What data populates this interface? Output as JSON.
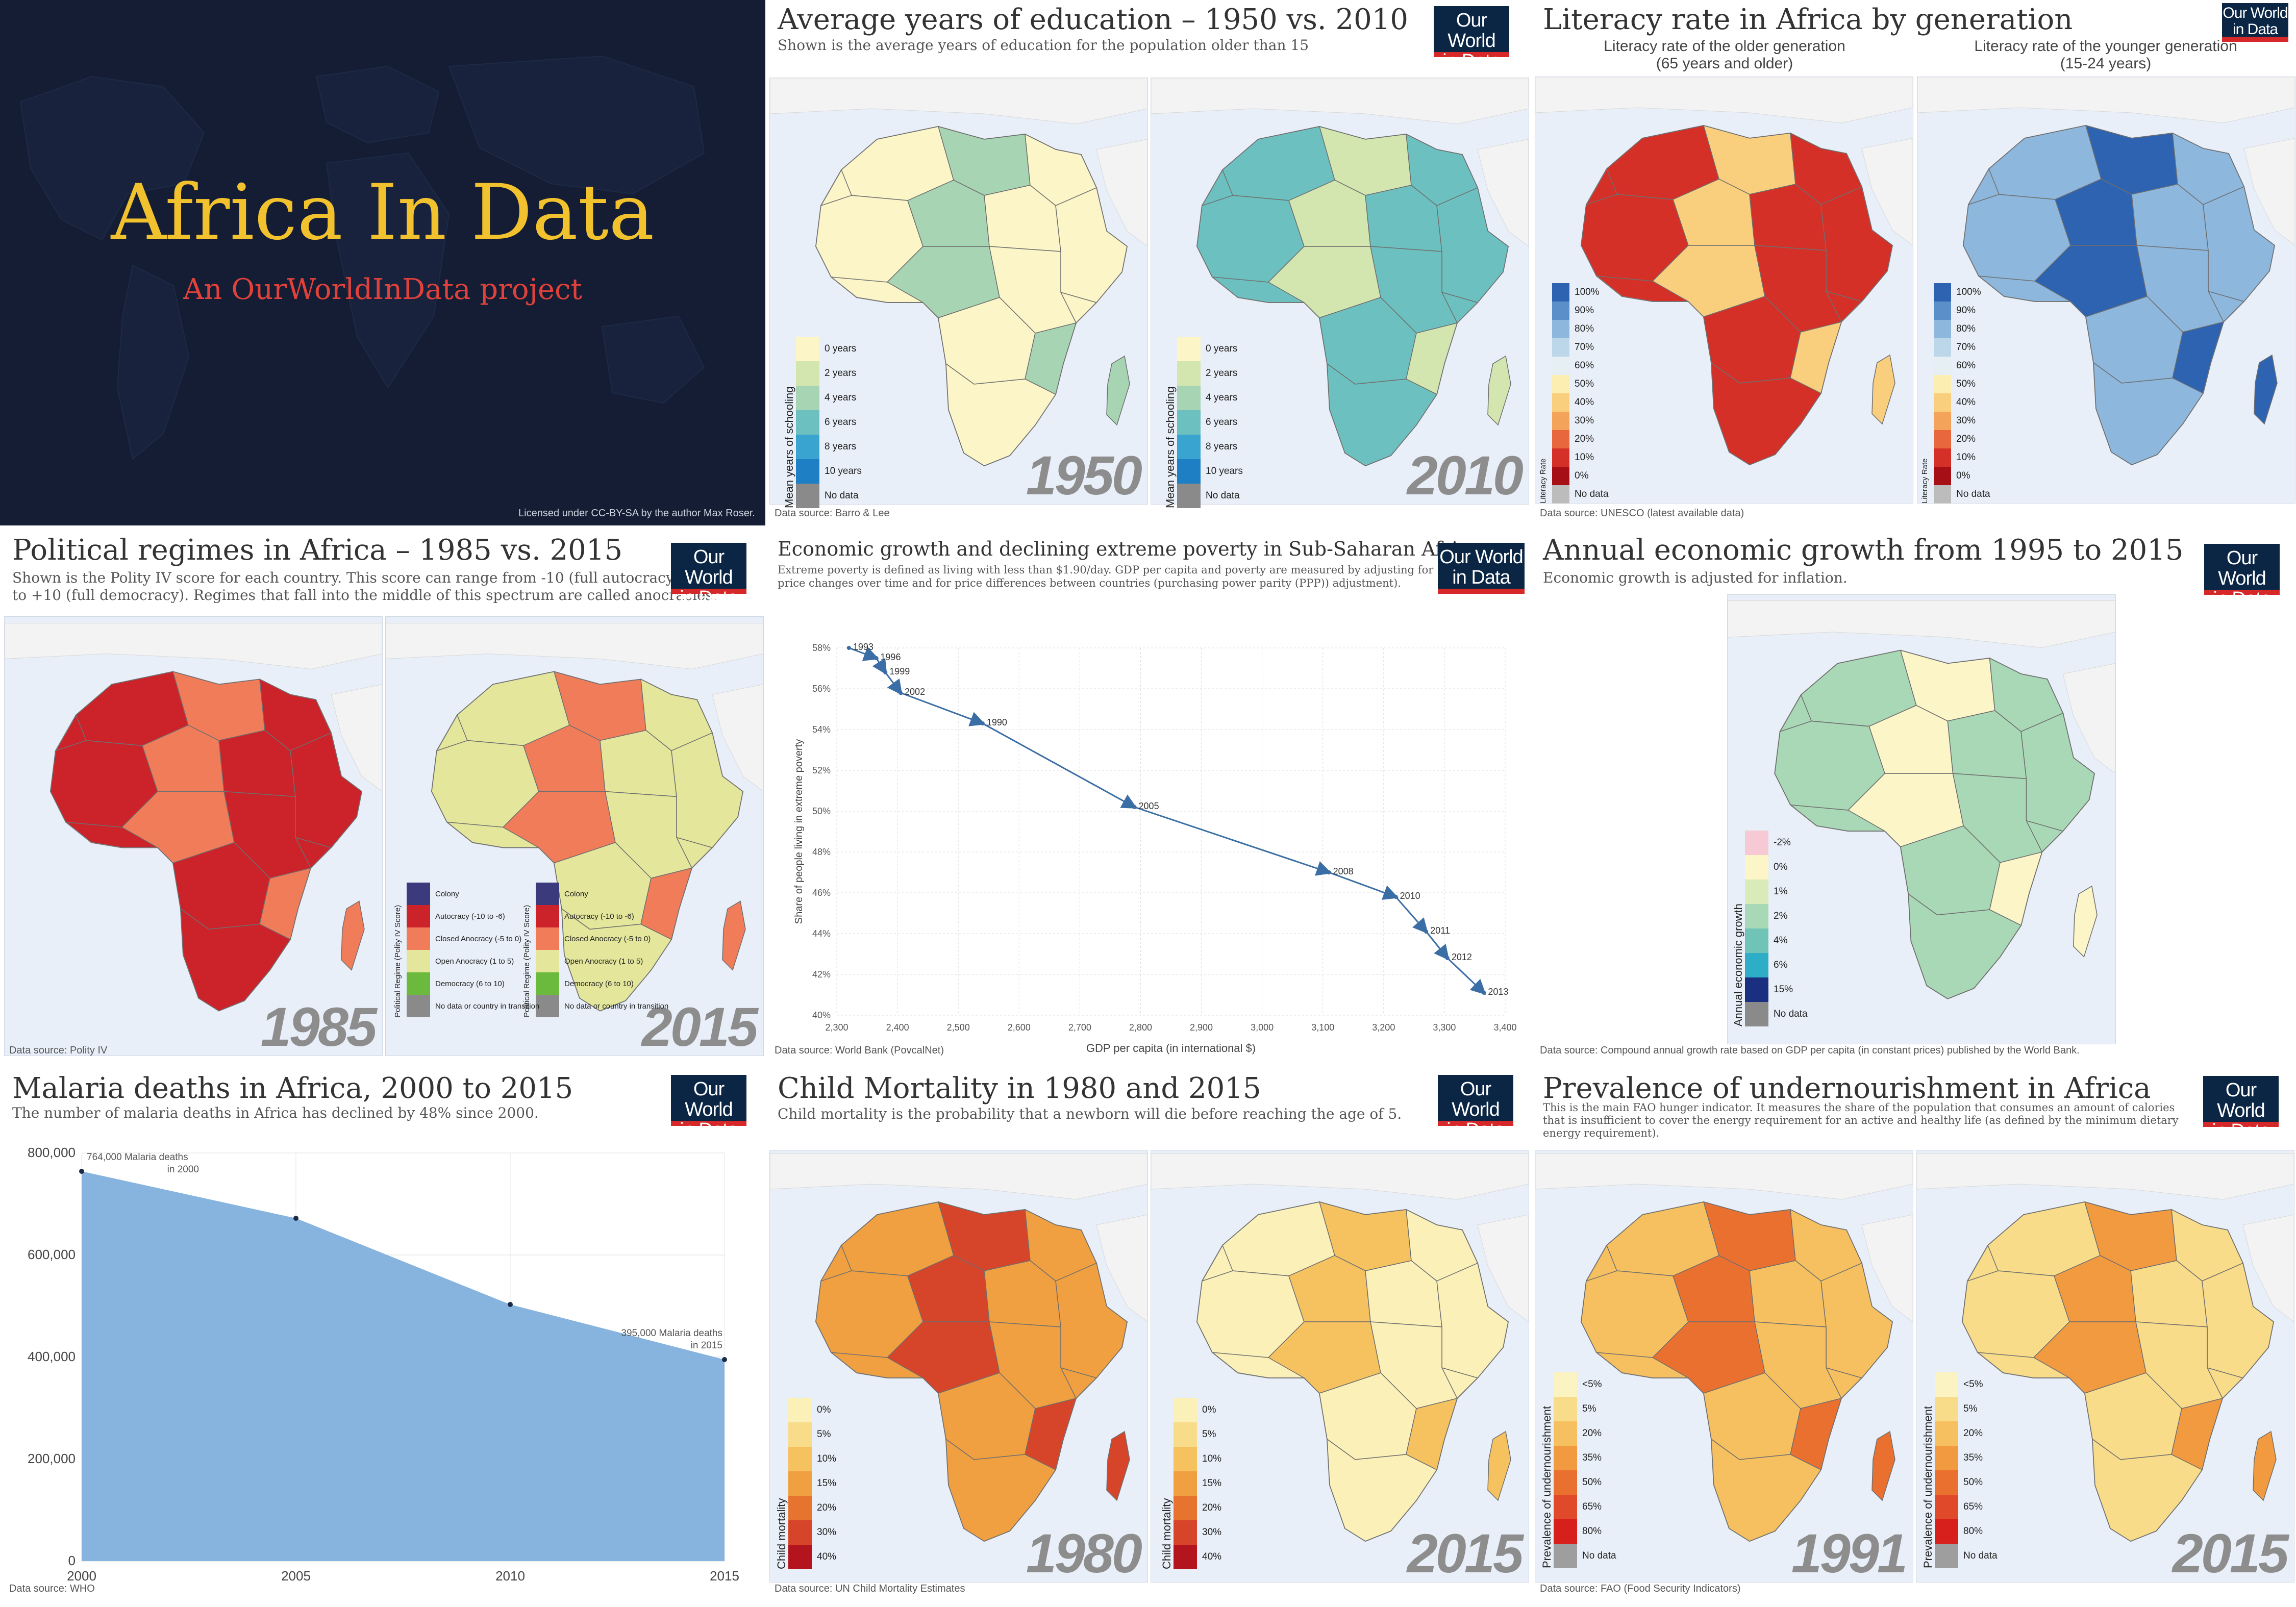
{
  "title_panel": {
    "title": "Africa In Data",
    "subtitle": "An OurWorldInData project",
    "license": "Licensed under CC-BY-SA by the author Max Roser."
  },
  "logo": {
    "line1": "Our World",
    "line2": "in Data"
  },
  "education": {
    "title": "Average years of education – 1950 vs. 2010",
    "subtitle": "Shown is the average years of education for the population older than 15",
    "years": [
      "1950",
      "2010"
    ],
    "legend_title": "Mean years of schooling",
    "legend": [
      "0 years",
      "2 years",
      "4 years",
      "6 years",
      "8 years",
      "10 years",
      "No data"
    ],
    "colors": [
      "#fbf5c8",
      "#d3e6b0",
      "#a7d4b2",
      "#6dc0c0",
      "#3aa4d0",
      "#1f7fc4",
      "#8a8a8a"
    ],
    "source": "Data source: Barro & Lee"
  },
  "literacy": {
    "title": "Literacy rate in Africa by generation",
    "older_label": "Literacy rate of the older generation",
    "older_range": "(65 years and older)",
    "younger_label": "Literacy rate of the younger generation",
    "younger_range": "(15-24 years)",
    "legend_title": "Literacy Rate",
    "legend": [
      "100%",
      "90%",
      "80%",
      "70%",
      "60%",
      "50%",
      "40%",
      "30%",
      "20%",
      "10%",
      "0%",
      "No data"
    ],
    "colors": [
      "#2d63b0",
      "#5b8fca",
      "#8db7dc",
      "#bcd7ea",
      "#e6eff3",
      "#fbeeb0",
      "#f9cf7e",
      "#f4a35a",
      "#e9673d",
      "#d43028",
      "#a50f15",
      "#bcbcbc"
    ],
    "source": "Data source: UNESCO (latest available data)"
  },
  "political": {
    "title": "Political regimes in Africa – 1985 vs. 2015",
    "subtitle1": "Shown is the Polity IV score for each country. This score can range from -10 (full autocracy)",
    "subtitle2": "to +10 (full democracy). Regimes that fall into the middle of this spectrum are called anocracies.",
    "years": [
      "1985",
      "2015"
    ],
    "legend_title": "Political Regime (Polity IV Score)",
    "legend": [
      "Colony",
      "Autocracy (-10 to -6)",
      "Closed Anocracy (-5 to 0)",
      "Open Anocracy (1 to 5)",
      "Democracy (6 to 10)",
      "No data or country in transition"
    ],
    "colors": [
      "#3b3a7c",
      "#cc2229",
      "#f07c5a",
      "#e3e69b",
      "#6bb93d",
      "#8a8a8a"
    ],
    "source": "Data source: Polity IV"
  },
  "poverty": {
    "title": "Economic growth and declining extreme poverty in Sub-Saharan Africa",
    "subtitle1": "Extreme poverty is defined as living with less than $1.90/day. GDP per capita and poverty are measured by adjusting for",
    "subtitle2": "price changes over time and for price differences between countries (purchasing power parity (PPP)) adjustment).",
    "source": "Data source: World Bank (PovcalNet)"
  },
  "growth": {
    "title": "Annual economic growth from 1995 to 2015",
    "subtitle": "Economic growth is adjusted for inflation.",
    "legend_title": "Annual economic growth",
    "legend": [
      "-2%",
      "0%",
      "1%",
      "2%",
      "4%",
      "6%",
      "15%",
      "No data"
    ],
    "colors": [
      "#f7c9d4",
      "#fbf5c8",
      "#d9ebb8",
      "#a9d8b6",
      "#6fc4b7",
      "#2eaec6",
      "#1b2f80",
      "#8a8a8a"
    ],
    "source": "Data source: Compound annual growth rate based on GDP per capita (in constant prices) published by the World Bank."
  },
  "malaria": {
    "title": "Malaria deaths in Africa, 2000 to 2015",
    "subtitle": "The number of malaria deaths in Africa has declined by 48% since 2000.",
    "annot_start1": "764,000 Malaria deaths",
    "annot_start2": "in 2000",
    "annot_end1": "395,000 Malaria deaths",
    "annot_end2": "in 2015",
    "source": "Data source: WHO"
  },
  "child_mortality": {
    "title": "Child Mortality in 1980 and 2015",
    "subtitle": "Child mortality is the probability that a newborn will die before reaching the age of 5.",
    "years": [
      "1980",
      "2015"
    ],
    "legend_title": "Child mortality",
    "legend": [
      "0%",
      "5%",
      "10%",
      "15%",
      "20%",
      "30%",
      "40%"
    ],
    "colors": [
      "#fbf0b8",
      "#f9dc8a",
      "#f6c25f",
      "#f0a040",
      "#e7742e",
      "#d6452a",
      "#b3141e"
    ],
    "source": "Data source: UN Child Mortality Estimates"
  },
  "undernourishment": {
    "title": "Prevalence of undernourishment in Africa",
    "subtitle1": "This is the main FAO hunger indicator. It measures the share of the population that consumes an amount of calories",
    "subtitle2": "that is insufficient to cover the energy requirement for an active and healthy life (as defined by the minimum dietary",
    "subtitle3": "energy requirement).",
    "years": [
      "1991",
      "2015"
    ],
    "legend_title": "Prevalence of undernourishment",
    "legend": [
      "<5%",
      "5%",
      "20%",
      "35%",
      "50%",
      "65%",
      "80%",
      "No data"
    ],
    "colors": [
      "#fbf3c2",
      "#f9dc8a",
      "#f6c060",
      "#f19a40",
      "#ea7030",
      "#e04a2a",
      "#d71f1c",
      "#9e9e9e"
    ],
    "source": "Data source: FAO (Food Security Indicators)"
  },
  "chart_data": [
    {
      "type": "line",
      "title": "Economic growth and declining extreme poverty in Sub-Saharan Africa",
      "xlabel": "GDP per capita (in international $)",
      "ylabel": "Share of people living in extreme poverty",
      "xlim": [
        2300,
        3400
      ],
      "ylim": [
        40,
        58
      ],
      "xticks": [
        "2,300",
        "2,400",
        "2,500",
        "2,600",
        "2,700",
        "2,800",
        "2,900",
        "3,000",
        "3,100",
        "3,200",
        "3,300",
        "3,400"
      ],
      "yticks": [
        "40%",
        "42%",
        "44%",
        "46%",
        "48%",
        "50%",
        "52%",
        "54%",
        "56%",
        "58%"
      ],
      "grid": true,
      "points": [
        {
          "label": "1993",
          "x": 2320,
          "y": 58.0
        },
        {
          "label": "1996",
          "x": 2365,
          "y": 57.5
        },
        {
          "label": "1999",
          "x": 2380,
          "y": 56.8
        },
        {
          "label": "2002",
          "x": 2405,
          "y": 55.8
        },
        {
          "label": "1990",
          "x": 2540,
          "y": 54.3
        },
        {
          "label": "2005",
          "x": 2790,
          "y": 50.2
        },
        {
          "label": "2008",
          "x": 3110,
          "y": 47.0
        },
        {
          "label": "2010",
          "x": 3220,
          "y": 45.8
        },
        {
          "label": "2011",
          "x": 3270,
          "y": 44.1
        },
        {
          "label": "2012",
          "x": 3305,
          "y": 42.8
        },
        {
          "label": "2013",
          "x": 3365,
          "y": 41.1
        }
      ]
    },
    {
      "type": "area",
      "title": "Malaria deaths in Africa, 2000 to 2015",
      "x": [
        2000,
        2005,
        2010,
        2015
      ],
      "values": [
        764000,
        672000,
        503000,
        395000
      ],
      "xticks": [
        "2000",
        "2005",
        "2010",
        "2015"
      ],
      "yticks": [
        "0",
        "200,000",
        "400,000",
        "600,000",
        "800,000"
      ],
      "ylim": [
        0,
        800000
      ],
      "grid": true,
      "color": "#7fb0dd"
    }
  ]
}
